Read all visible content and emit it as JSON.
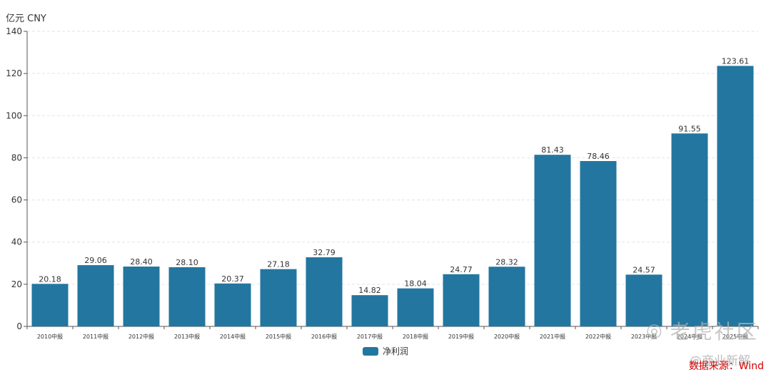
{
  "chart_data": {
    "type": "bar",
    "unit_label": "亿元  CNY",
    "categories": [
      "2010中报",
      "2011中报",
      "2012中报",
      "2013中报",
      "2014中报",
      "2015中报",
      "2016中报",
      "2017中报",
      "2018中报",
      "2019中报",
      "2020中报",
      "2021中报",
      "2022中报",
      "2023中报",
      "2024中报",
      "2025中报"
    ],
    "series": [
      {
        "name": "净利润",
        "values": [
          20.18,
          29.06,
          28.4,
          28.1,
          20.37,
          27.18,
          32.79,
          14.82,
          18.04,
          24.77,
          28.32,
          81.43,
          78.46,
          24.57,
          91.55,
          123.61
        ]
      }
    ],
    "value_labels": [
      "20.18",
      "29.06",
      "28.40",
      "28.10",
      "20.37",
      "27.18",
      "32.79",
      "14.82",
      "18.04",
      "24.77",
      "28.32",
      "81.43",
      "78.46",
      "24.57",
      "91.55",
      "123.61"
    ],
    "ylim": [
      0,
      140
    ],
    "yticks": [
      "0",
      "20",
      "40",
      "60",
      "80",
      "100",
      "120",
      "140"
    ],
    "grid": true,
    "legend_position": "bottom-center",
    "bar_color": "#23769f"
  },
  "source_text": "数据来源：Wind",
  "watermark_text": "老虎社区",
  "watermark_sub": "@商业新解",
  "watermark_icon": "tiger-logo-icon"
}
